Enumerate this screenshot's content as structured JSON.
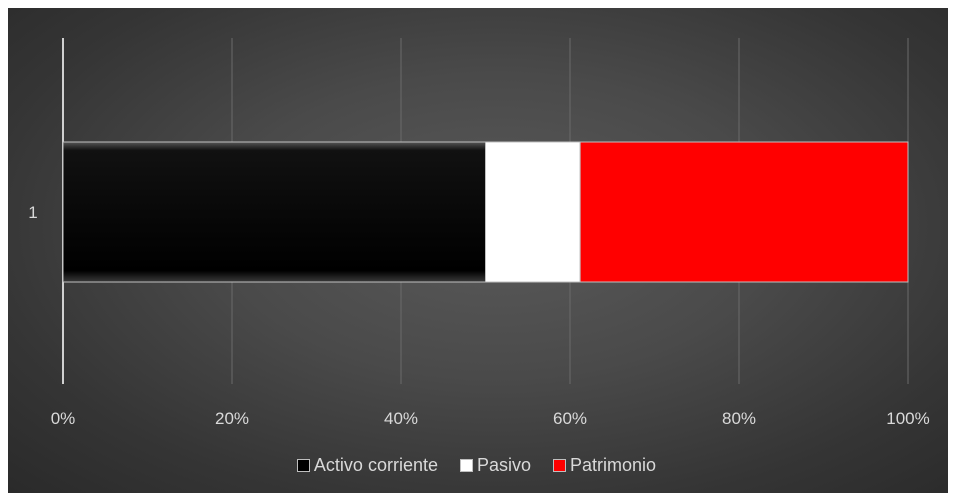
{
  "chart_data": {
    "type": "bar",
    "orientation": "horizontal",
    "stacking": "percent",
    "categories": [
      "1"
    ],
    "series": [
      {
        "name": "Activo corriente",
        "values": [
          50
        ],
        "color": "#000000"
      },
      {
        "name": "Pasivo",
        "values": [
          11.2
        ],
        "color": "#ffffff"
      },
      {
        "name": "Patrimonio",
        "values": [
          38.8
        ],
        "color": "#ff0000"
      }
    ],
    "x_ticks": [
      "0%",
      "20%",
      "40%",
      "60%",
      "80%",
      "100%"
    ],
    "xlim": [
      0,
      100
    ],
    "grid": true,
    "legend_position": "bottom",
    "background": "#4a4a4a",
    "gridline_color": "#6a6a6a",
    "text_color": "#d9d9d9"
  }
}
